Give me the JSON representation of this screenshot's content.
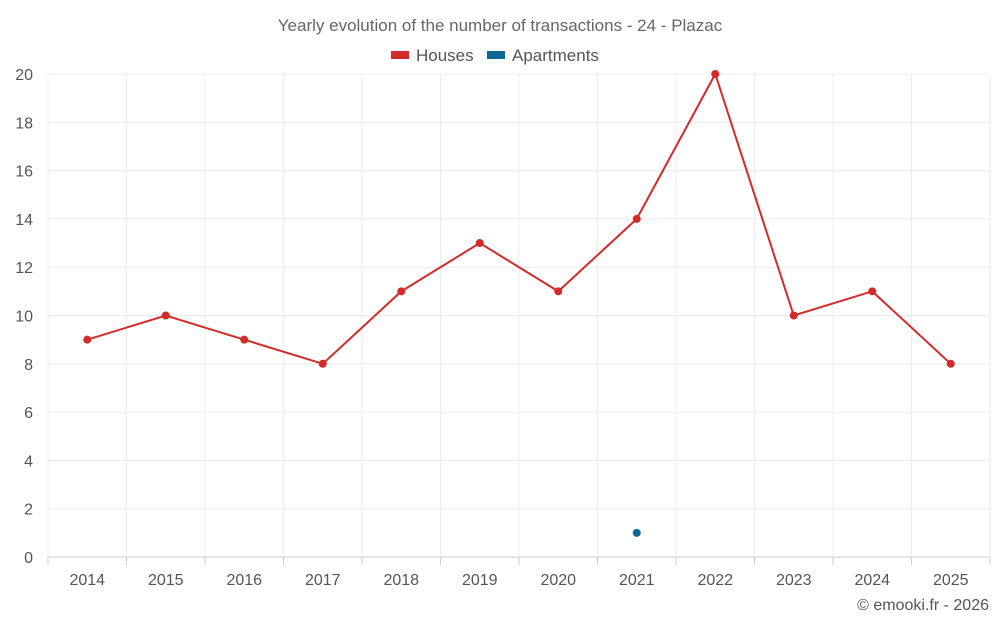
{
  "chart_data": {
    "type": "line",
    "title": "Yearly evolution of the number of transactions - 24 - Plazac",
    "categories": [
      "2014",
      "2015",
      "2016",
      "2017",
      "2018",
      "2019",
      "2020",
      "2021",
      "2022",
      "2023",
      "2024",
      "2025"
    ],
    "series": [
      {
        "name": "Houses",
        "color": "#d32a2a",
        "values": [
          9,
          10,
          9,
          8,
          11,
          13,
          11,
          14,
          20,
          10,
          11,
          8
        ]
      },
      {
        "name": "Apartments",
        "color": "#0e6698",
        "values": [
          null,
          null,
          null,
          null,
          null,
          null,
          null,
          1,
          null,
          null,
          null,
          null
        ]
      }
    ],
    "ylim": [
      0,
      20
    ],
    "yticks": [
      0,
      2,
      4,
      6,
      8,
      10,
      12,
      14,
      16,
      18,
      20
    ],
    "grid": true,
    "legend_position": "top-center",
    "xlabel": "",
    "ylabel": ""
  },
  "credit": "© emooki.fr - 2026"
}
